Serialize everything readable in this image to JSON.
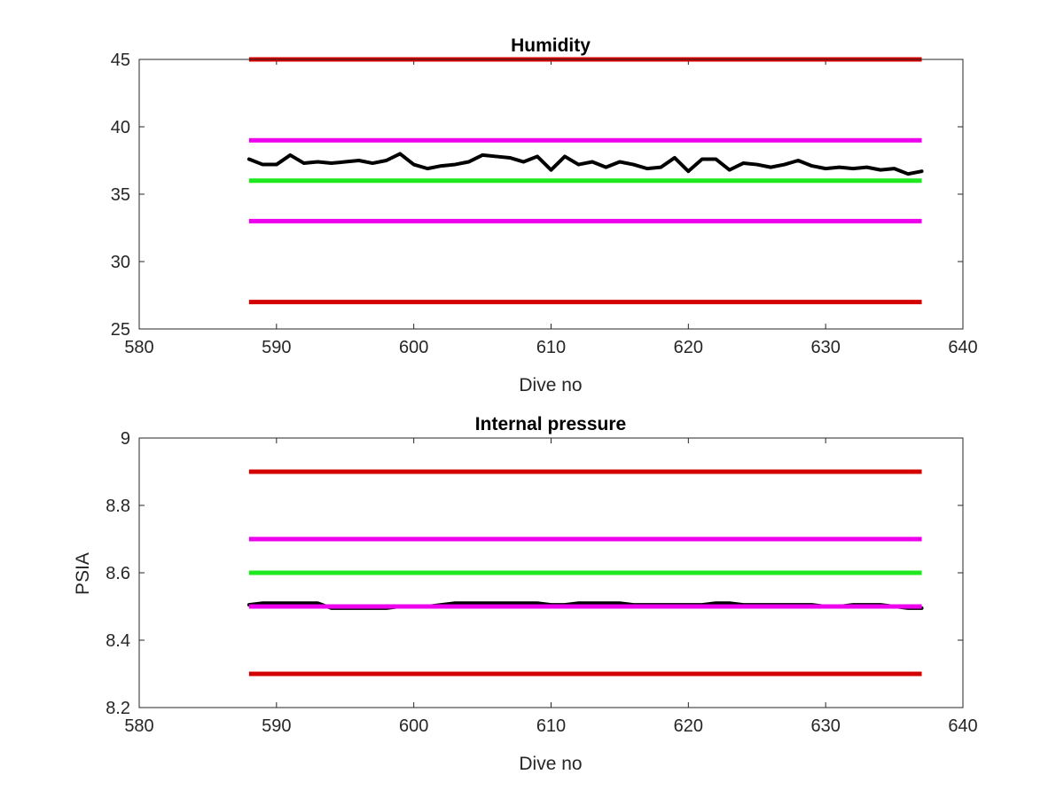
{
  "chart_data": [
    {
      "type": "line",
      "title": "Humidity",
      "xlabel": "Dive no",
      "ylabel": "",
      "xlim": [
        580,
        640
      ],
      "ylim": [
        25,
        45
      ],
      "x_ticks": [
        580,
        590,
        600,
        610,
        620,
        630,
        640
      ],
      "y_ticks": [
        25,
        30,
        35,
        40,
        45
      ],
      "grid": false,
      "reference_lines": [
        {
          "y": 45,
          "x_start": 588,
          "x_end": 637,
          "color": "#d40000"
        },
        {
          "y": 39,
          "x_start": 588,
          "x_end": 637,
          "color": "#ee00ee"
        },
        {
          "y": 36,
          "x_start": 588,
          "x_end": 637,
          "color": "#1ee81e"
        },
        {
          "y": 33,
          "x_start": 588,
          "x_end": 637,
          "color": "#ee00ee"
        },
        {
          "y": 27,
          "x_start": 588,
          "x_end": 637,
          "color": "#d40000"
        }
      ],
      "series": [
        {
          "color": "#000000",
          "x": [
            588,
            589,
            590,
            591,
            592,
            593,
            594,
            595,
            596,
            597,
            598,
            599,
            600,
            601,
            602,
            603,
            604,
            605,
            606,
            607,
            608,
            609,
            610,
            611,
            612,
            613,
            614,
            615,
            616,
            617,
            618,
            619,
            620,
            621,
            622,
            623,
            624,
            625,
            626,
            627,
            628,
            629,
            630,
            631,
            632,
            633,
            634,
            635,
            636,
            637
          ],
          "values": [
            37.6,
            37.2,
            37.2,
            37.9,
            37.3,
            37.4,
            37.3,
            37.4,
            37.5,
            37.3,
            37.5,
            38.0,
            37.2,
            36.9,
            37.1,
            37.2,
            37.4,
            37.9,
            37.8,
            37.7,
            37.4,
            37.8,
            36.8,
            37.8,
            37.2,
            37.4,
            37.0,
            37.4,
            37.2,
            36.9,
            37.0,
            37.7,
            36.7,
            37.6,
            37.6,
            36.8,
            37.3,
            37.2,
            37.0,
            37.2,
            37.5,
            37.1,
            36.9,
            37.0,
            36.9,
            37.0,
            36.8,
            36.9,
            36.5,
            36.7
          ]
        }
      ]
    },
    {
      "type": "line",
      "title": "Internal pressure",
      "xlabel": "Dive no",
      "ylabel": "PSIA",
      "xlim": [
        580,
        640
      ],
      "ylim": [
        8.2,
        9.0
      ],
      "x_ticks": [
        580,
        590,
        600,
        610,
        620,
        630,
        640
      ],
      "y_ticks": [
        8.2,
        8.4,
        8.6,
        8.8,
        9.0
      ],
      "y_tick_labels": [
        "8.2",
        "8.4",
        "8.6",
        "8.8",
        "9"
      ],
      "grid": false,
      "reference_lines": [
        {
          "y": 8.9,
          "x_start": 588,
          "x_end": 637,
          "color": "#d40000"
        },
        {
          "y": 8.7,
          "x_start": 588,
          "x_end": 637,
          "color": "#ee00ee"
        },
        {
          "y": 8.6,
          "x_start": 588,
          "x_end": 637,
          "color": "#1ee81e"
        },
        {
          "y": 8.3,
          "x_start": 588,
          "x_end": 637,
          "color": "#d40000"
        }
      ],
      "series": [
        {
          "color": "#000000",
          "x": [
            588,
            589,
            590,
            591,
            592,
            593,
            594,
            595,
            596,
            597,
            598,
            599,
            600,
            601,
            602,
            603,
            604,
            605,
            606,
            607,
            608,
            609,
            610,
            611,
            612,
            613,
            614,
            615,
            616,
            617,
            618,
            619,
            620,
            621,
            622,
            623,
            624,
            625,
            626,
            627,
            628,
            629,
            630,
            631,
            632,
            633,
            634,
            635,
            636,
            637
          ],
          "values": [
            8.505,
            8.51,
            8.51,
            8.51,
            8.51,
            8.51,
            8.495,
            8.495,
            8.495,
            8.495,
            8.495,
            8.5,
            8.5,
            8.5,
            8.505,
            8.51,
            8.51,
            8.51,
            8.51,
            8.51,
            8.51,
            8.51,
            8.505,
            8.505,
            8.51,
            8.51,
            8.51,
            8.51,
            8.505,
            8.505,
            8.505,
            8.505,
            8.505,
            8.505,
            8.51,
            8.51,
            8.505,
            8.505,
            8.505,
            8.505,
            8.505,
            8.505,
            8.5,
            8.5,
            8.505,
            8.505,
            8.505,
            8.5,
            8.495,
            8.495
          ]
        }
      ],
      "overlay_reference_lines": [
        {
          "y": 8.5,
          "x_start": 588,
          "x_end": 637,
          "color": "#ee00ee"
        }
      ]
    }
  ]
}
